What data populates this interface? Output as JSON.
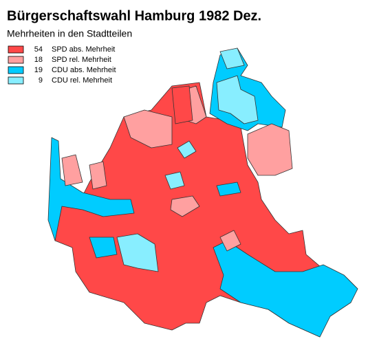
{
  "title": "Bürgerschaftswahl Hamburg 1982 Dez.",
  "subtitle": "Mehrheiten in den Stadtteilen",
  "legend": [
    {
      "count": 54,
      "label": "SPD abs. Mehrheit",
      "color": "#ff4848"
    },
    {
      "count": 18,
      "label": "SPD rel. Mehrheit",
      "color": "#ffa0a0"
    },
    {
      "count": 19,
      "label": "CDU abs. Mehrheit",
      "color": "#00ccff"
    },
    {
      "count": 9,
      "label": "CDU rel. Mehrheit",
      "color": "#88eeff"
    }
  ]
}
